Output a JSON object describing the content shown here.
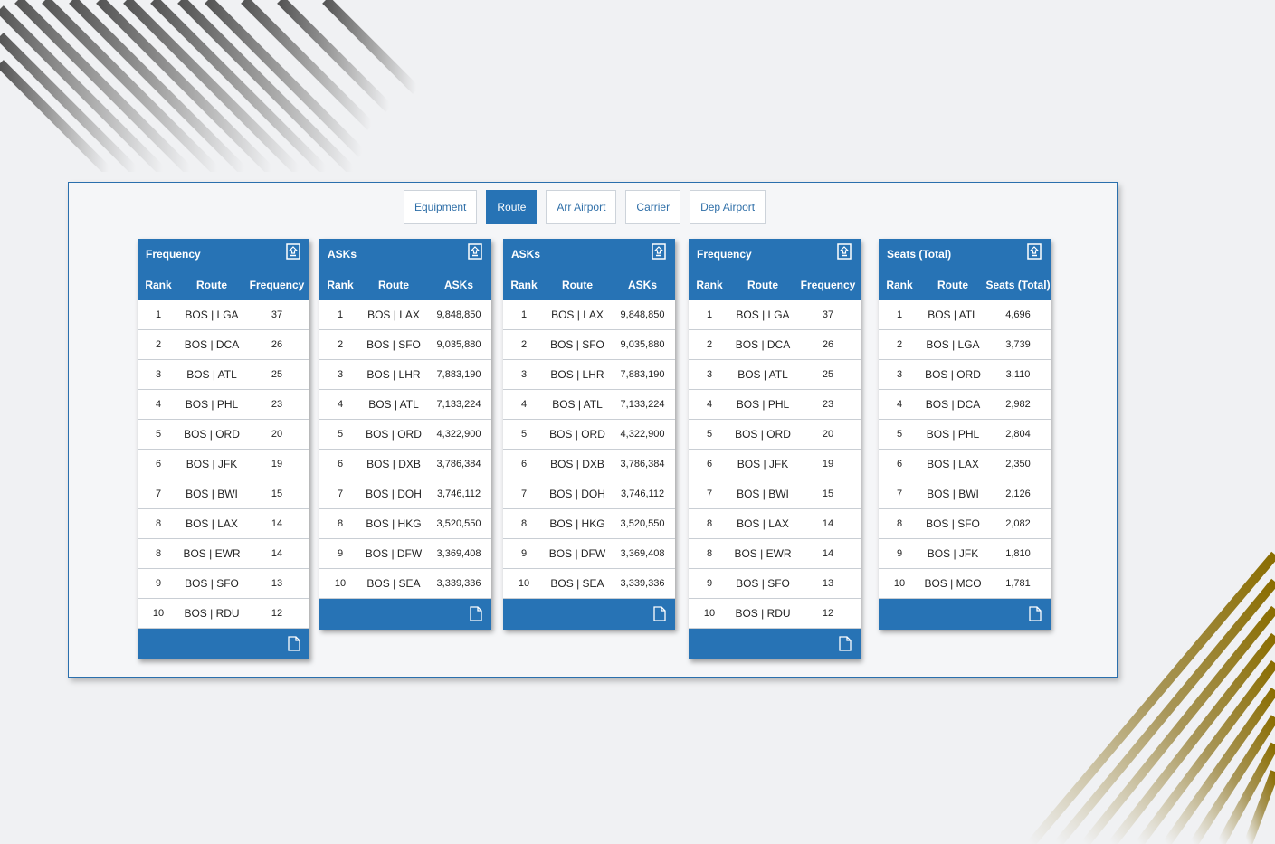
{
  "tabs": [
    {
      "label": "Equipment",
      "active": false
    },
    {
      "label": "Route",
      "active": true
    },
    {
      "label": "Arr Airport",
      "active": false
    },
    {
      "label": "Carrier",
      "active": false
    },
    {
      "label": "Dep Airport",
      "active": false
    }
  ],
  "cards": [
    {
      "title": "Frequency",
      "columns": [
        "Rank",
        "Route",
        "Frequency"
      ],
      "rows": [
        [
          "1",
          "BOS | LGA",
          "37"
        ],
        [
          "2",
          "BOS | DCA",
          "26"
        ],
        [
          "3",
          "BOS | ATL",
          "25"
        ],
        [
          "4",
          "BOS | PHL",
          "23"
        ],
        [
          "5",
          "BOS | ORD",
          "20"
        ],
        [
          "6",
          "BOS | JFK",
          "19"
        ],
        [
          "7",
          "BOS | BWI",
          "15"
        ],
        [
          "8",
          "BOS | LAX",
          "14"
        ],
        [
          "8",
          "BOS | EWR",
          "14"
        ],
        [
          "9",
          "BOS | SFO",
          "13"
        ],
        [
          "10",
          "BOS | RDU",
          "12"
        ]
      ]
    },
    {
      "title": "ASKs",
      "columns": [
        "Rank",
        "Route",
        "ASKs"
      ],
      "rows": [
        [
          "1",
          "BOS | LAX",
          "9,848,850"
        ],
        [
          "2",
          "BOS | SFO",
          "9,035,880"
        ],
        [
          "3",
          "BOS | LHR",
          "7,883,190"
        ],
        [
          "4",
          "BOS | ATL",
          "7,133,224"
        ],
        [
          "5",
          "BOS | ORD",
          "4,322,900"
        ],
        [
          "6",
          "BOS | DXB",
          "3,786,384"
        ],
        [
          "7",
          "BOS | DOH",
          "3,746,112"
        ],
        [
          "8",
          "BOS | HKG",
          "3,520,550"
        ],
        [
          "9",
          "BOS | DFW",
          "3,369,408"
        ],
        [
          "10",
          "BOS | SEA",
          "3,339,336"
        ]
      ]
    },
    {
      "title": "ASKs",
      "columns": [
        "Rank",
        "Route",
        "ASKs"
      ],
      "rows": [
        [
          "1",
          "BOS | LAX",
          "9,848,850"
        ],
        [
          "2",
          "BOS | SFO",
          "9,035,880"
        ],
        [
          "3",
          "BOS | LHR",
          "7,883,190"
        ],
        [
          "4",
          "BOS | ATL",
          "7,133,224"
        ],
        [
          "5",
          "BOS | ORD",
          "4,322,900"
        ],
        [
          "6",
          "BOS | DXB",
          "3,786,384"
        ],
        [
          "7",
          "BOS | DOH",
          "3,746,112"
        ],
        [
          "8",
          "BOS | HKG",
          "3,520,550"
        ],
        [
          "9",
          "BOS | DFW",
          "3,369,408"
        ],
        [
          "10",
          "BOS | SEA",
          "3,339,336"
        ]
      ]
    },
    {
      "title": "Frequency",
      "columns": [
        "Rank",
        "Route",
        "Frequency"
      ],
      "rows": [
        [
          "1",
          "BOS | LGA",
          "37"
        ],
        [
          "2",
          "BOS | DCA",
          "26"
        ],
        [
          "3",
          "BOS | ATL",
          "25"
        ],
        [
          "4",
          "BOS | PHL",
          "23"
        ],
        [
          "5",
          "BOS | ORD",
          "20"
        ],
        [
          "6",
          "BOS | JFK",
          "19"
        ],
        [
          "7",
          "BOS | BWI",
          "15"
        ],
        [
          "8",
          "BOS | LAX",
          "14"
        ],
        [
          "8",
          "BOS | EWR",
          "14"
        ],
        [
          "9",
          "BOS | SFO",
          "13"
        ],
        [
          "10",
          "BOS | RDU",
          "12"
        ]
      ]
    },
    {
      "title": "Seats (Total)",
      "columns": [
        "Rank",
        "Route",
        "Seats (Total)"
      ],
      "rows": [
        [
          "1",
          "BOS | ATL",
          "4,696"
        ],
        [
          "2",
          "BOS | LGA",
          "3,739"
        ],
        [
          "3",
          "BOS | ORD",
          "3,110"
        ],
        [
          "4",
          "BOS | DCA",
          "2,982"
        ],
        [
          "5",
          "BOS | PHL",
          "2,804"
        ],
        [
          "6",
          "BOS | LAX",
          "2,350"
        ],
        [
          "7",
          "BOS | BWI",
          "2,126"
        ],
        [
          "8",
          "BOS | SFO",
          "2,082"
        ],
        [
          "9",
          "BOS | JFK",
          "1,810"
        ],
        [
          "10",
          "BOS | MCO",
          "1,781"
        ]
      ]
    }
  ],
  "colors": {
    "accent": "#2773b5",
    "gold": "#9a7f1c"
  }
}
